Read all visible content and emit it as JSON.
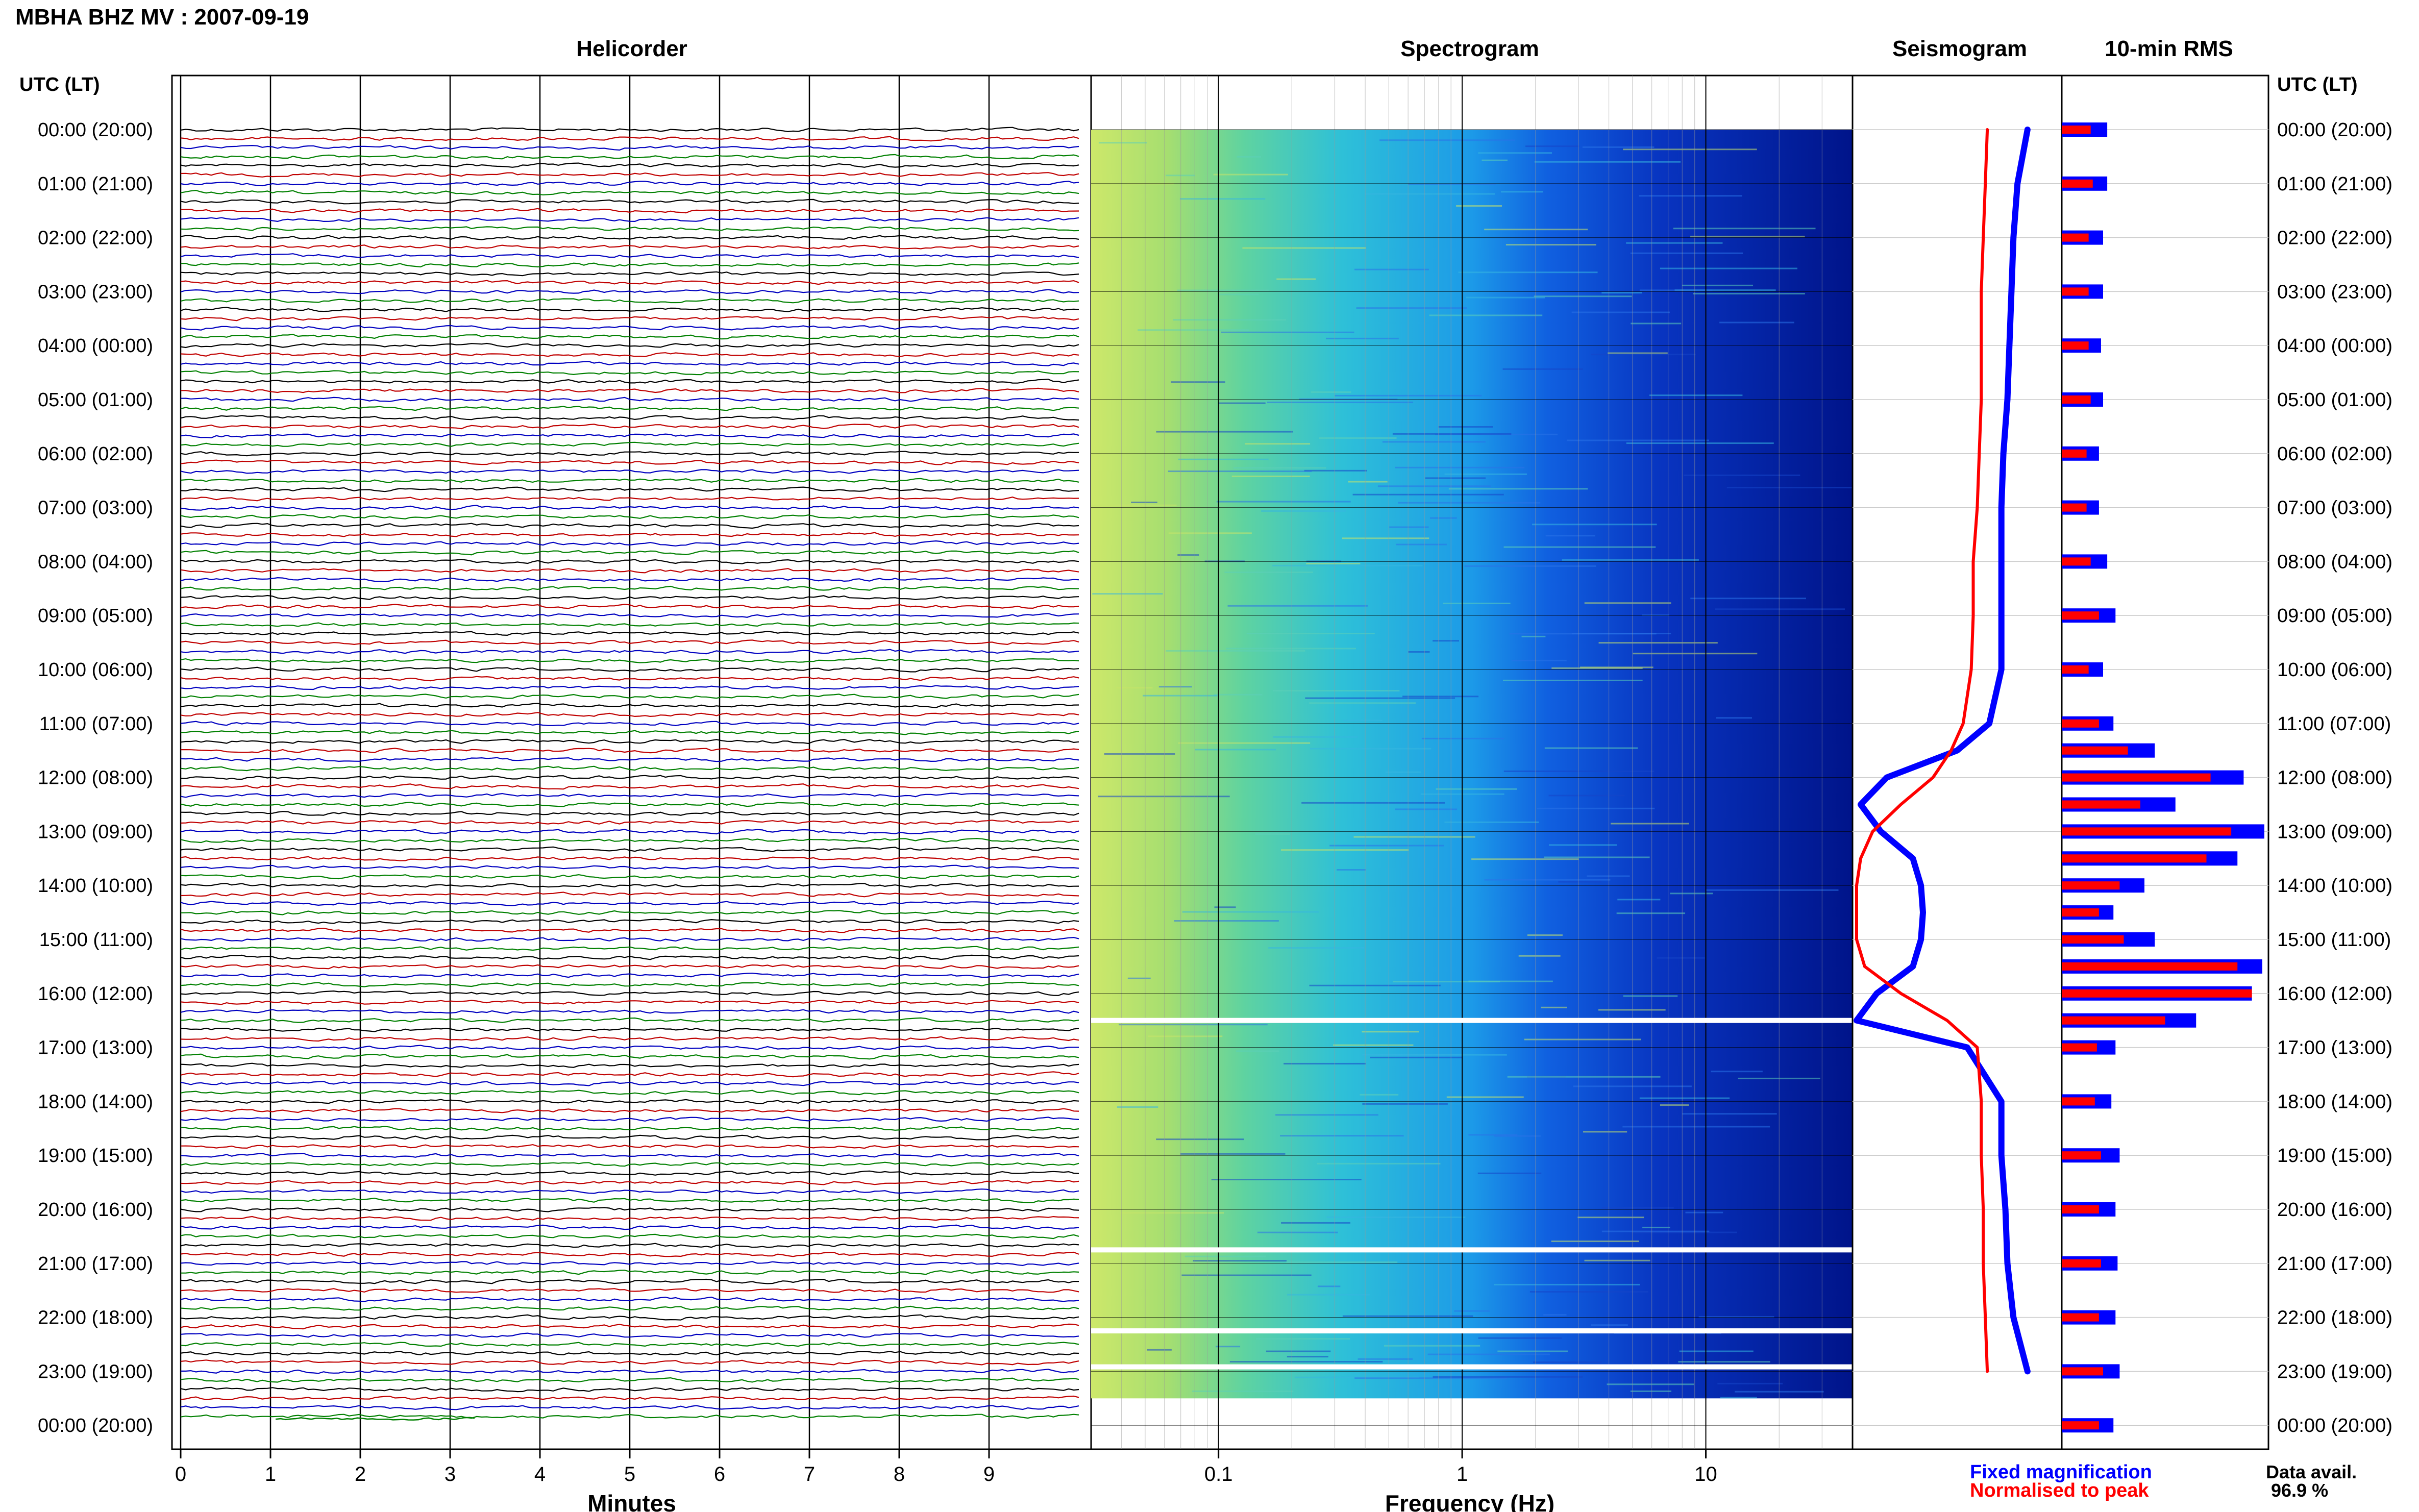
{
  "title": "MBHA BHZ MV : 2007-09-19",
  "panels": {
    "helicorder": "Helicorder",
    "spectrogram": "Spectrogram",
    "seismogram": "Seismogram",
    "rms": "10-min RMS"
  },
  "time_axis_label": "UTC (LT)",
  "time_labels": [
    "00:00 (20:00)",
    "01:00 (21:00)",
    "02:00 (22:00)",
    "03:00 (23:00)",
    "04:00 (00:00)",
    "05:00 (01:00)",
    "06:00 (02:00)",
    "07:00 (03:00)",
    "08:00 (04:00)",
    "09:00 (05:00)",
    "10:00 (06:00)",
    "11:00 (07:00)",
    "12:00 (08:00)",
    "13:00 (09:00)",
    "14:00 (10:00)",
    "15:00 (11:00)",
    "16:00 (12:00)",
    "17:00 (13:00)",
    "18:00 (14:00)",
    "19:00 (15:00)",
    "20:00 (16:00)",
    "21:00 (17:00)",
    "22:00 (18:00)",
    "23:00 (19:00)",
    "00:00 (20:00)"
  ],
  "helicorder": {
    "xlabel": "Minutes",
    "ticks": [
      "0",
      "1",
      "2",
      "3",
      "4",
      "5",
      "6",
      "7",
      "8",
      "9"
    ],
    "trace_colors": [
      "#000000",
      "#c00000",
      "#0000c0",
      "#008000"
    ]
  },
  "spectrogram": {
    "xlabel": "Frequency (Hz)",
    "ticks": [
      "0.1",
      "1",
      "10"
    ]
  },
  "legend": {
    "fixed": "Fixed magnification",
    "normalised": "Normalised to peak",
    "fixed_color": "#0000ff",
    "normalised_color": "#ff0000"
  },
  "data_avail": {
    "label": "Data avail.",
    "value": "96.9 %"
  },
  "chart_data": [
    {
      "type": "heatmap",
      "title": "Spectrogram",
      "xlabel": "Frequency (Hz)",
      "xscale": "log",
      "xlim": [
        0.03,
        40
      ],
      "ylim": [
        "00:00",
        "24:00"
      ],
      "data_gaps_utc": [
        "16:30",
        "20:45",
        "22:15",
        "22:55"
      ]
    },
    {
      "type": "line",
      "title": "Seismogram",
      "y_hours": [
        0,
        1,
        2,
        3,
        4,
        5,
        6,
        7,
        8,
        9,
        10,
        11,
        11.5,
        12,
        12.5,
        13,
        13.5,
        14,
        14.5,
        15,
        15.5,
        16,
        16.5,
        17,
        18,
        19,
        20,
        21,
        22,
        23
      ],
      "series": [
        {
          "name": "Fixed magnification",
          "color": "#0000ff",
          "values": [
            0.85,
            0.8,
            0.78,
            0.77,
            0.76,
            0.75,
            0.73,
            0.72,
            0.72,
            0.72,
            0.72,
            0.66,
            0.5,
            0.15,
            0.02,
            0.12,
            0.28,
            0.32,
            0.33,
            0.32,
            0.28,
            0.1,
            0.0,
            0.55,
            0.72,
            0.72,
            0.74,
            0.75,
            0.78,
            0.85
          ]
        },
        {
          "name": "Normalised to peak",
          "color": "#ff0000",
          "values": [
            0.65,
            0.64,
            0.63,
            0.62,
            0.62,
            0.62,
            0.61,
            0.6,
            0.58,
            0.58,
            0.57,
            0.53,
            0.47,
            0.38,
            0.22,
            0.08,
            0.02,
            0.0,
            0.0,
            0.0,
            0.04,
            0.22,
            0.45,
            0.6,
            0.62,
            0.62,
            0.63,
            0.63,
            0.64,
            0.65
          ]
        }
      ]
    },
    {
      "type": "bar",
      "title": "10-min RMS",
      "orientation": "horizontal",
      "y_hours": [
        0,
        1,
        2,
        3,
        4,
        5,
        6,
        7,
        8,
        9,
        10,
        11,
        11.5,
        12,
        12.5,
        13,
        13.5,
        14,
        14.5,
        15,
        15.5,
        16,
        16.5,
        17,
        18,
        19,
        20,
        21,
        22,
        23,
        24
      ],
      "series": [
        {
          "name": "Fixed magnification",
          "color": "#0000ff",
          "values": [
            0.22,
            0.22,
            0.2,
            0.2,
            0.19,
            0.2,
            0.18,
            0.18,
            0.22,
            0.26,
            0.2,
            0.25,
            0.45,
            0.88,
            0.55,
            0.98,
            0.85,
            0.4,
            0.25,
            0.45,
            0.97,
            0.92,
            0.65,
            0.26,
            0.24,
            0.28,
            0.26,
            0.27,
            0.26,
            0.28,
            0.25
          ]
        },
        {
          "name": "Normalised to peak",
          "color": "#ff0000",
          "values": [
            0.14,
            0.15,
            0.13,
            0.13,
            0.13,
            0.14,
            0.12,
            0.12,
            0.14,
            0.18,
            0.13,
            0.18,
            0.32,
            0.72,
            0.38,
            0.82,
            0.7,
            0.28,
            0.18,
            0.3,
            0.85,
            0.92,
            0.5,
            0.17,
            0.16,
            0.19,
            0.18,
            0.19,
            0.18,
            0.2,
            0.18
          ]
        }
      ]
    }
  ]
}
